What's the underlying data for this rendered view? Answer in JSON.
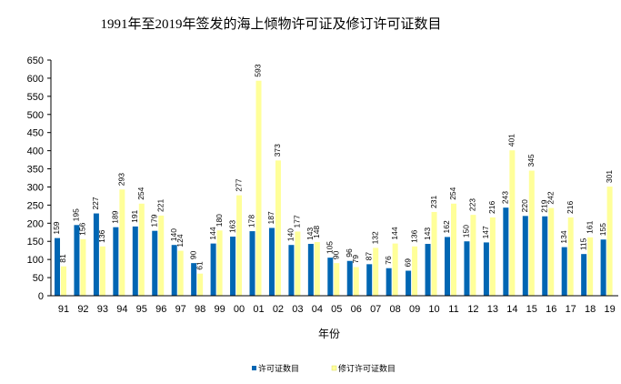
{
  "chart_data": {
    "type": "bar",
    "title": "1991年至2019年签发的海上倾物许可证及修订许可证数目",
    "xlabel": "年份",
    "ylabel": "",
    "ylim": [
      0,
      650
    ],
    "yticks": [
      0,
      50,
      100,
      150,
      200,
      250,
      300,
      350,
      400,
      450,
      500,
      550,
      600,
      650
    ],
    "grid": false,
    "legend_position": "bottom",
    "categories": [
      "91",
      "92",
      "93",
      "94",
      "95",
      "96",
      "97",
      "98",
      "99",
      "00",
      "01",
      "02",
      "03",
      "04",
      "05",
      "06",
      "07",
      "08",
      "09",
      "10",
      "11",
      "12",
      "13",
      "14",
      "15",
      "16",
      "17",
      "18",
      "19"
    ],
    "series": [
      {
        "name": "许可证数目",
        "color": "#0066b3",
        "values": [
          159,
          195,
          227,
          189,
          191,
          179,
          140,
          90,
          144,
          163,
          178,
          187,
          140,
          143,
          105,
          96,
          87,
          76,
          69,
          143,
          162,
          150,
          147,
          243,
          220,
          219,
          134,
          115,
          155
        ]
      },
      {
        "name": "修订许可证数目",
        "color": "#ffff99",
        "values": [
          81,
          156,
          136,
          293,
          254,
          221,
          124,
          61,
          180,
          277,
          593,
          373,
          177,
          148,
          90,
          79,
          132,
          144,
          136,
          231,
          254,
          223,
          216,
          401,
          345,
          242,
          216,
          161,
          301
        ]
      }
    ]
  }
}
